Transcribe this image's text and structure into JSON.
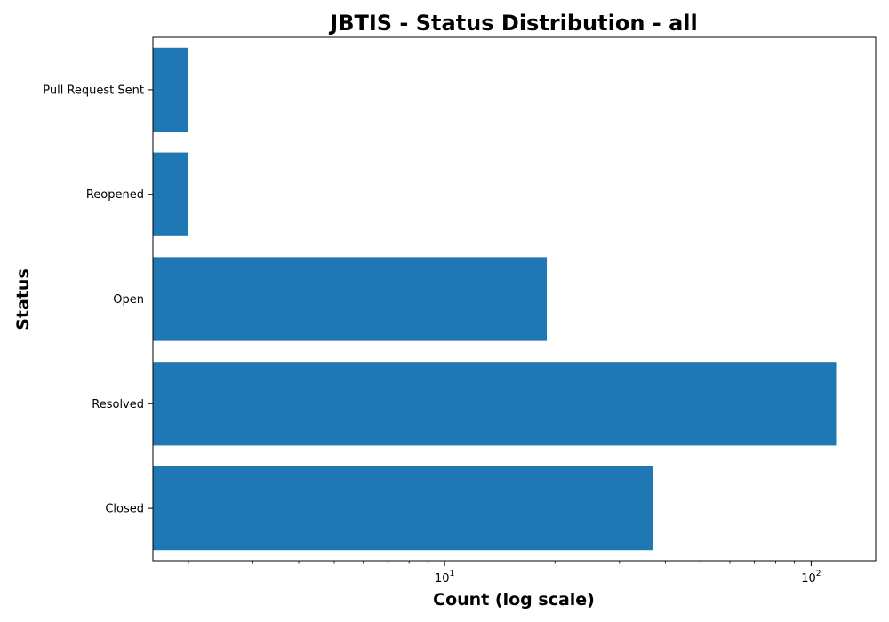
{
  "chart_data": {
    "type": "bar",
    "orientation": "horizontal",
    "title": "JBTIS - Status Distribution - all",
    "xlabel": "Count (log scale)",
    "ylabel": "Status",
    "xscale": "log",
    "xlim": [
      1.6,
      150
    ],
    "x_ticks": [
      10,
      100
    ],
    "x_tick_labels": [
      {
        "base": "10",
        "exp": "1"
      },
      {
        "base": "10",
        "exp": "2"
      }
    ],
    "categories": [
      "Closed",
      "Resolved",
      "Open",
      "Reopened",
      "Pull Request Sent"
    ],
    "values": [
      37,
      117,
      19,
      2,
      2
    ],
    "bar_color": "#1f77b4",
    "grid": false,
    "legend": false
  }
}
